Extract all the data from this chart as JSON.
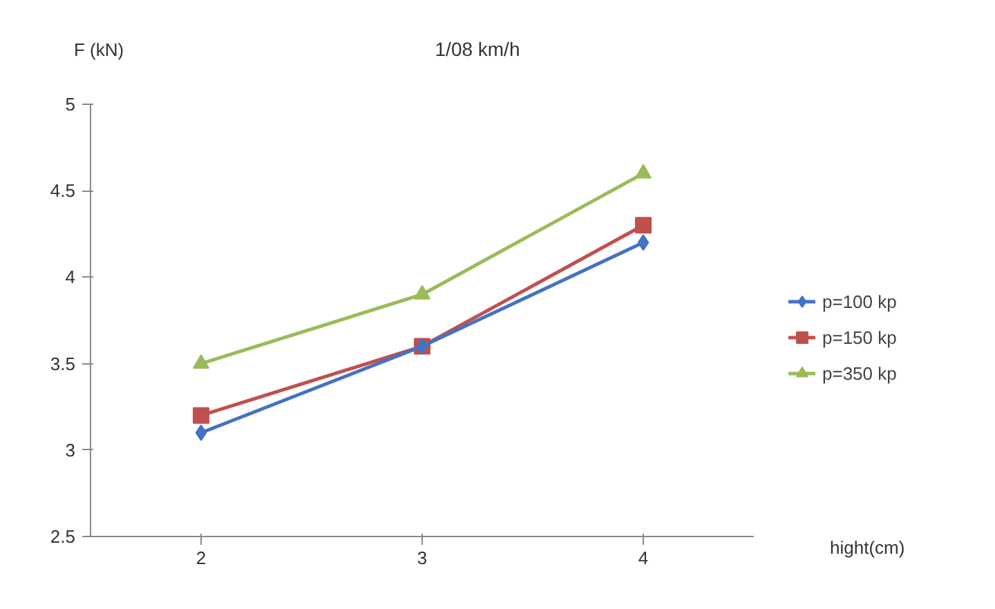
{
  "chart_data": {
    "type": "line",
    "title": "1/08 km/h",
    "ylabel": "F (kN)",
    "xlabel": "hight(cm)",
    "categories": [
      "2",
      "3",
      "4"
    ],
    "series": [
      {
        "name": "p=100 kp",
        "color": "#4472c4",
        "marker": "diamond",
        "values": [
          3.1,
          3.6,
          4.2
        ]
      },
      {
        "name": "p=150 kp",
        "color": "#c0504d",
        "marker": "square",
        "values": [
          3.2,
          3.6,
          4.3
        ]
      },
      {
        "name": "p=350 kp",
        "color": "#9bbb59",
        "marker": "triangle",
        "values": [
          3.5,
          3.9,
          4.6
        ]
      }
    ],
    "ylim": [
      2.5,
      5
    ],
    "yticks": [
      2.5,
      3,
      3.5,
      4,
      4.5,
      5
    ],
    "grid": false,
    "legend": "right",
    "line_style": "solid"
  }
}
